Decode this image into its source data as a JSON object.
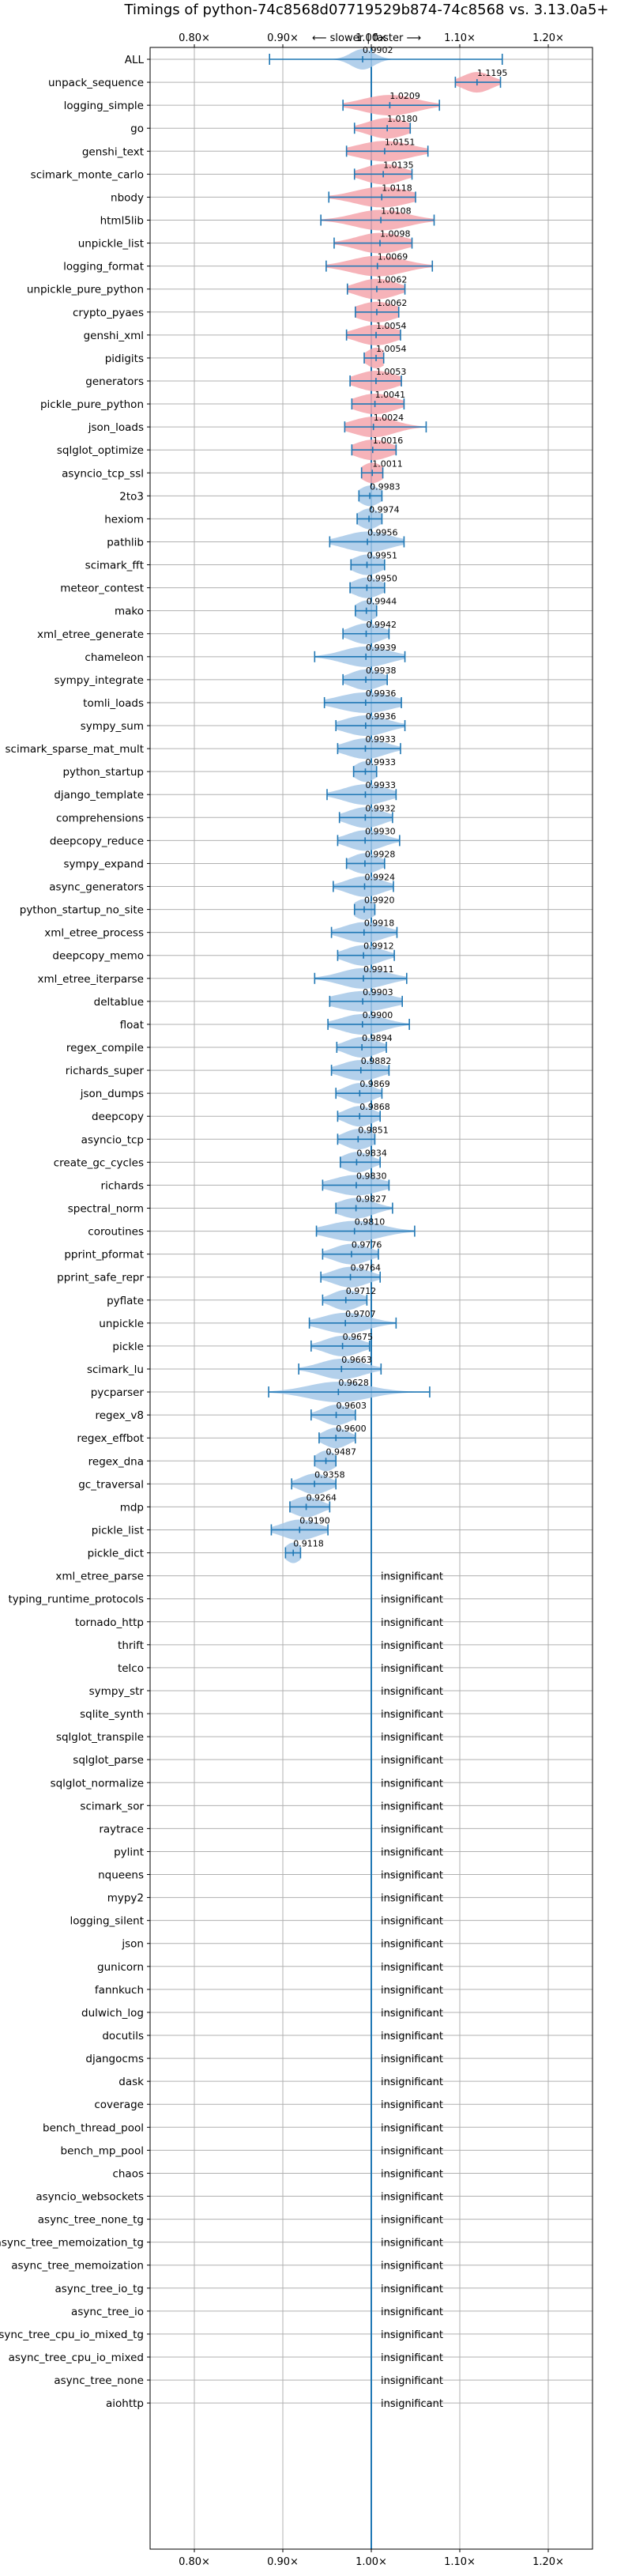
{
  "chart_data": {
    "type": "violin",
    "title": "Timings of python-74c8568d07719529b874-74c8568 vs. 3.13.0a5+",
    "direction_label": "⟵ slower | faster ⟶",
    "xlim": [
      0.75,
      1.25
    ],
    "xticks": [
      "0.80×",
      "0.90×",
      "1.00×",
      "1.10×",
      "1.20×"
    ],
    "xtick_values": [
      0.8,
      0.9,
      1.0,
      1.1,
      1.2
    ],
    "reference_line": 1.0,
    "grid": true,
    "colors": {
      "faster": "#a6c8e8",
      "slower": "#f4a6ad",
      "line": "#1f77b4",
      "grid": "#b0b0b0"
    },
    "benchmarks": [
      {
        "name": "ALL",
        "value": 0.9902,
        "label": "0.9902",
        "low": 0.885,
        "high": 1.148,
        "width": 0.013
      },
      {
        "name": "unpack_sequence",
        "value": 1.1195,
        "label": "1.1195",
        "low": 1.095,
        "high": 1.146,
        "width": 0.016
      },
      {
        "name": "logging_simple",
        "value": 1.0209,
        "label": "1.0209",
        "low": 0.968,
        "high": 1.077,
        "width": 0.03
      },
      {
        "name": "go",
        "value": 1.018,
        "label": "1.0180",
        "low": 0.981,
        "high": 1.044,
        "width": 0.022
      },
      {
        "name": "genshi_text",
        "value": 1.0151,
        "label": "1.0151",
        "low": 0.972,
        "high": 1.064,
        "width": 0.03
      },
      {
        "name": "scimark_monte_carlo",
        "value": 1.0135,
        "label": "1.0135",
        "low": 0.981,
        "high": 1.046,
        "width": 0.022
      },
      {
        "name": "nbody",
        "value": 1.0118,
        "label": "1.0118",
        "low": 0.952,
        "high": 1.05,
        "width": 0.03
      },
      {
        "name": "html5lib",
        "value": 1.0108,
        "label": "1.0108",
        "low": 0.943,
        "high": 1.071,
        "width": 0.03
      },
      {
        "name": "unpickle_list",
        "value": 1.0098,
        "label": "1.0098",
        "low": 0.958,
        "high": 1.046,
        "width": 0.026
      },
      {
        "name": "logging_format",
        "value": 1.0069,
        "label": "1.0069",
        "low": 0.949,
        "high": 1.069,
        "width": 0.03
      },
      {
        "name": "unpickle_pure_python",
        "value": 1.0062,
        "label": "1.0062",
        "low": 0.973,
        "high": 1.038,
        "width": 0.022
      },
      {
        "name": "crypto_pyaes",
        "value": 1.0062,
        "label": "1.0062",
        "low": 0.982,
        "high": 1.031,
        "width": 0.022
      },
      {
        "name": "genshi_xml",
        "value": 1.0054,
        "label": "1.0054",
        "low": 0.972,
        "high": 1.033,
        "width": 0.022
      },
      {
        "name": "pidigits",
        "value": 1.0054,
        "label": "1.0054",
        "low": 0.992,
        "high": 1.014,
        "width": 0.011
      },
      {
        "name": "generators",
        "value": 1.0053,
        "label": "1.0053",
        "low": 0.976,
        "high": 1.034,
        "width": 0.022
      },
      {
        "name": "pickle_pure_python",
        "value": 1.0041,
        "label": "1.0041",
        "low": 0.978,
        "high": 1.037,
        "width": 0.022
      },
      {
        "name": "json_loads",
        "value": 1.0024,
        "label": "1.0024",
        "low": 0.97,
        "high": 1.062,
        "width": 0.024
      },
      {
        "name": "sqlglot_optimize",
        "value": 1.0016,
        "label": "1.0016",
        "low": 0.978,
        "high": 1.028,
        "width": 0.02
      },
      {
        "name": "asyncio_tcp_ssl",
        "value": 1.0011,
        "label": "1.0011",
        "low": 0.989,
        "high": 1.013,
        "width": 0.012
      },
      {
        "name": "2to3",
        "value": 0.9983,
        "label": "0.9983",
        "low": 0.986,
        "high": 1.012,
        "width": 0.012
      },
      {
        "name": "hexiom",
        "value": 0.9974,
        "label": "0.9974",
        "low": 0.984,
        "high": 1.012,
        "width": 0.012
      },
      {
        "name": "pathlib",
        "value": 0.9956,
        "label": "0.9956",
        "low": 0.953,
        "high": 1.037,
        "width": 0.026
      },
      {
        "name": "scimark_fft",
        "value": 0.9951,
        "label": "0.9951",
        "low": 0.977,
        "high": 1.015,
        "width": 0.016
      },
      {
        "name": "meteor_contest",
        "value": 0.995,
        "label": "0.9950",
        "low": 0.976,
        "high": 1.015,
        "width": 0.016
      },
      {
        "name": "mako",
        "value": 0.9944,
        "label": "0.9944",
        "low": 0.982,
        "high": 1.006,
        "width": 0.012
      },
      {
        "name": "xml_etree_generate",
        "value": 0.9942,
        "label": "0.9942",
        "low": 0.968,
        "high": 1.02,
        "width": 0.018
      },
      {
        "name": "chameleon",
        "value": 0.9939,
        "label": "0.9939",
        "low": 0.936,
        "high": 1.038,
        "width": 0.026
      },
      {
        "name": "sympy_integrate",
        "value": 0.9938,
        "label": "0.9938",
        "low": 0.968,
        "high": 1.018,
        "width": 0.018
      },
      {
        "name": "tomli_loads",
        "value": 0.9936,
        "label": "0.9936",
        "low": 0.947,
        "high": 1.034,
        "width": 0.03
      },
      {
        "name": "sympy_sum",
        "value": 0.9936,
        "label": "0.9936",
        "low": 0.96,
        "high": 1.038,
        "width": 0.024
      },
      {
        "name": "scimark_sparse_mat_mult",
        "value": 0.9933,
        "label": "0.9933",
        "low": 0.962,
        "high": 1.033,
        "width": 0.022
      },
      {
        "name": "python_startup",
        "value": 0.9933,
        "label": "0.9933",
        "low": 0.98,
        "high": 1.006,
        "width": 0.012
      },
      {
        "name": "django_template",
        "value": 0.9933,
        "label": "0.9933",
        "low": 0.95,
        "high": 1.028,
        "width": 0.024
      },
      {
        "name": "comprehensions",
        "value": 0.9932,
        "label": "0.9932",
        "low": 0.964,
        "high": 1.024,
        "width": 0.02
      },
      {
        "name": "deepcopy_reduce",
        "value": 0.993,
        "label": "0.9930",
        "low": 0.962,
        "high": 1.032,
        "width": 0.02
      },
      {
        "name": "sympy_expand",
        "value": 0.9928,
        "label": "0.9928",
        "low": 0.972,
        "high": 1.015,
        "width": 0.016
      },
      {
        "name": "async_generators",
        "value": 0.9924,
        "label": "0.9924",
        "low": 0.957,
        "high": 1.025,
        "width": 0.02
      },
      {
        "name": "python_startup_no_site",
        "value": 0.992,
        "label": "0.9920",
        "low": 0.981,
        "high": 1.004,
        "width": 0.012
      },
      {
        "name": "xml_etree_process",
        "value": 0.9918,
        "label": "0.9918",
        "low": 0.955,
        "high": 1.029,
        "width": 0.022
      },
      {
        "name": "deepcopy_memo",
        "value": 0.9912,
        "label": "0.9912",
        "low": 0.962,
        "high": 1.026,
        "width": 0.02
      },
      {
        "name": "xml_etree_iterparse",
        "value": 0.9911,
        "label": "0.9911",
        "low": 0.936,
        "high": 1.04,
        "width": 0.026
      },
      {
        "name": "deltablue",
        "value": 0.9903,
        "label": "0.9903",
        "low": 0.953,
        "high": 1.035,
        "width": 0.03
      },
      {
        "name": "float",
        "value": 0.99,
        "label": "0.9900",
        "low": 0.951,
        "high": 1.043,
        "width": 0.024
      },
      {
        "name": "regex_compile",
        "value": 0.9894,
        "label": "0.9894",
        "low": 0.961,
        "high": 1.017,
        "width": 0.018
      },
      {
        "name": "richards_super",
        "value": 0.9882,
        "label": "0.9882",
        "low": 0.955,
        "high": 1.02,
        "width": 0.022
      },
      {
        "name": "json_dumps",
        "value": 0.9869,
        "label": "0.9869",
        "low": 0.96,
        "high": 1.012,
        "width": 0.016
      },
      {
        "name": "deepcopy",
        "value": 0.9868,
        "label": "0.9868",
        "low": 0.962,
        "high": 1.01,
        "width": 0.016
      },
      {
        "name": "asyncio_tcp",
        "value": 0.9851,
        "label": "0.9851",
        "low": 0.962,
        "high": 1.004,
        "width": 0.016
      },
      {
        "name": "create_gc_cycles",
        "value": 0.9834,
        "label": "0.9834",
        "low": 0.965,
        "high": 1.01,
        "width": 0.016
      },
      {
        "name": "richards",
        "value": 0.983,
        "label": "0.9830",
        "low": 0.945,
        "high": 1.02,
        "width": 0.026
      },
      {
        "name": "spectral_norm",
        "value": 0.9827,
        "label": "0.9827",
        "low": 0.96,
        "high": 1.024,
        "width": 0.02
      },
      {
        "name": "coroutines",
        "value": 0.981,
        "label": "0.9810",
        "low": 0.938,
        "high": 1.049,
        "width": 0.03
      },
      {
        "name": "pprint_pformat",
        "value": 0.9776,
        "label": "0.9776",
        "low": 0.945,
        "high": 1.008,
        "width": 0.02
      },
      {
        "name": "pprint_safe_repr",
        "value": 0.9764,
        "label": "0.9764",
        "low": 0.943,
        "high": 1.01,
        "width": 0.02
      },
      {
        "name": "pyflate",
        "value": 0.9712,
        "label": "0.9712",
        "low": 0.945,
        "high": 0.995,
        "width": 0.016
      },
      {
        "name": "unpickle",
        "value": 0.9707,
        "label": "0.9707",
        "low": 0.93,
        "high": 1.028,
        "width": 0.026
      },
      {
        "name": "pickle",
        "value": 0.9675,
        "label": "0.9675",
        "low": 0.932,
        "high": 0.998,
        "width": 0.02
      },
      {
        "name": "scimark_lu",
        "value": 0.9663,
        "label": "0.9663",
        "low": 0.918,
        "high": 1.011,
        "width": 0.024
      },
      {
        "name": "pycparser",
        "value": 0.9628,
        "label": "0.9628",
        "low": 0.884,
        "high": 1.066,
        "width": 0.034
      },
      {
        "name": "regex_v8",
        "value": 0.9603,
        "label": "0.9603",
        "low": 0.932,
        "high": 0.982,
        "width": 0.016
      },
      {
        "name": "regex_effbot",
        "value": 0.96,
        "label": "0.9600",
        "low": 0.941,
        "high": 0.982,
        "width": 0.014
      },
      {
        "name": "regex_dna",
        "value": 0.9487,
        "label": "0.9487",
        "low": 0.936,
        "high": 0.96,
        "width": 0.011
      },
      {
        "name": "gc_traversal",
        "value": 0.9358,
        "label": "0.9358",
        "low": 0.91,
        "high": 0.96,
        "width": 0.016
      },
      {
        "name": "mdp",
        "value": 0.9264,
        "label": "0.9264",
        "low": 0.908,
        "high": 0.953,
        "width": 0.016
      },
      {
        "name": "pickle_list",
        "value": 0.919,
        "label": "0.9190",
        "low": 0.887,
        "high": 0.951,
        "width": 0.02
      },
      {
        "name": "pickle_dict",
        "value": 0.9118,
        "label": "0.9118",
        "low": 0.903,
        "high": 0.92,
        "width": 0.009
      }
    ],
    "insignificant_label": "insignificant",
    "insignificant": [
      "xml_etree_parse",
      "typing_runtime_protocols",
      "tornado_http",
      "thrift",
      "telco",
      "sympy_str",
      "sqlite_synth",
      "sqlglot_transpile",
      "sqlglot_parse",
      "sqlglot_normalize",
      "scimark_sor",
      "raytrace",
      "pylint",
      "nqueens",
      "mypy2",
      "logging_silent",
      "json",
      "gunicorn",
      "fannkuch",
      "dulwich_log",
      "docutils",
      "djangocms",
      "dask",
      "coverage",
      "bench_thread_pool",
      "bench_mp_pool",
      "chaos",
      "asyncio_websockets",
      "async_tree_none_tg",
      "async_tree_memoization_tg",
      "async_tree_memoization",
      "async_tree_io_tg",
      "async_tree_io",
      "async_tree_cpu_io_mixed_tg",
      "async_tree_cpu_io_mixed",
      "async_tree_none",
      "aiohttp"
    ]
  }
}
